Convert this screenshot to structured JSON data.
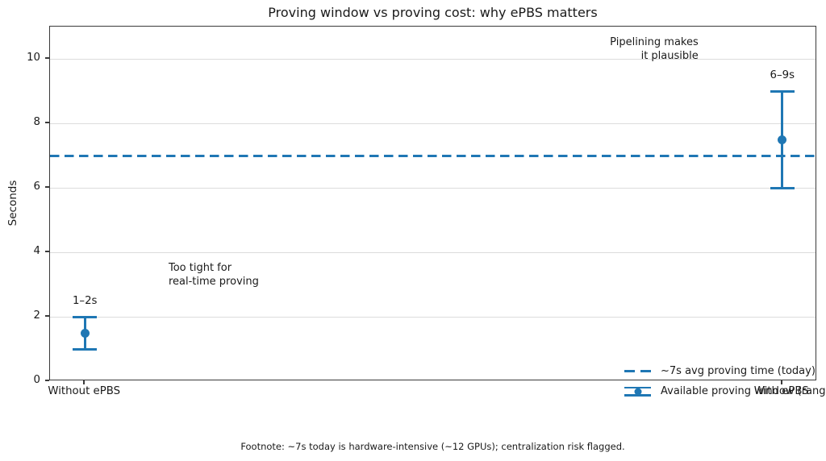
{
  "chart_data": {
    "type": "errorbar",
    "title": "Proving window vs proving cost: why ePBS matters",
    "ylabel": "Seconds",
    "xlabel": "",
    "ylim": [
      0,
      11
    ],
    "yticks": [
      0,
      2,
      4,
      6,
      8,
      10
    ],
    "xlim": [
      -0.05,
      1.05
    ],
    "x": [
      0,
      1
    ],
    "categories": [
      "Without ePBS",
      "With ePBS"
    ],
    "grid": "horizontal",
    "points": [
      {
        "category": "Without ePBS",
        "x": 0,
        "min": 1,
        "center": 1.5,
        "max": 2,
        "label": "1–2s"
      },
      {
        "category": "With ePBS",
        "x": 1,
        "min": 6,
        "center": 7.5,
        "max": 9,
        "label": "6–9s"
      }
    ],
    "reference_line": {
      "y": 7,
      "style": "dashed"
    },
    "annotations": [
      {
        "id": "too-tight",
        "x": 0.12,
        "y": 3.3,
        "align": "left",
        "lines": [
          "Too tight for",
          "real-time proving"
        ]
      },
      {
        "id": "pipelining",
        "x": 0.882,
        "y": 10.3,
        "align": "right",
        "lines": [
          "Pipelining makes",
          "it plausible"
        ]
      }
    ],
    "legend": {
      "position": "lower right",
      "items": [
        {
          "type": "dashed-line",
          "label": "~7s avg proving time (today)"
        },
        {
          "type": "errorbar",
          "label": "Available proving window (range)"
        }
      ]
    },
    "colors": {
      "accent": "#1f77b4",
      "grid": "#dcdcdc",
      "spine": "#3a3a3a",
      "text": "#1a1a1a"
    }
  },
  "footnote": "Footnote: ~7s today is hardware-intensive (~12 GPUs); centralization risk flagged."
}
